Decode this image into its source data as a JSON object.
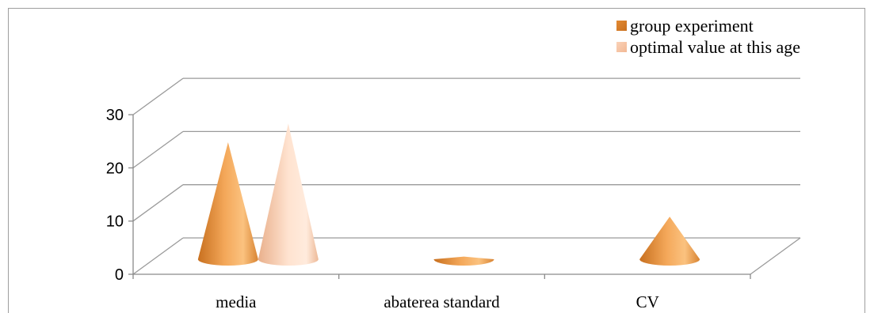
{
  "chart_data": {
    "type": "bar",
    "shape": "cone-3d",
    "categories": [
      "media",
      "abaterea standard",
      "CV"
    ],
    "series": [
      {
        "name": "group experiment",
        "values": [
          22,
          0.5,
          8
        ],
        "color": "#F0A04B"
      },
      {
        "name": "optimal value at this age",
        "values": [
          25.5,
          null,
          null
        ],
        "color": "#F9C9A8"
      }
    ],
    "yticks": [
      "0",
      "10",
      "20",
      "30"
    ],
    "ylim": [
      0,
      30
    ],
    "grid": true,
    "legend": "top-right"
  }
}
